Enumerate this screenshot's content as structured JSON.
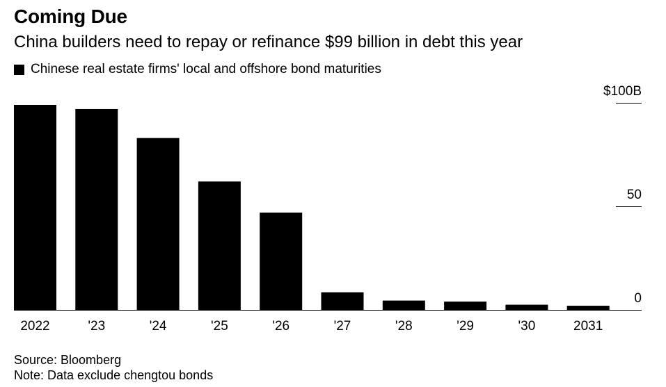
{
  "header": {
    "title": "Coming Due",
    "subtitle": "China builders need to repay or refinance $99 billion in debt this year"
  },
  "legend": {
    "label": "Chinese real estate firms' local and offshore bond maturities",
    "color": "#000000"
  },
  "footer": {
    "source": "Source: Bloomberg",
    "note": "Note: Data exclude chengtou bonds"
  },
  "chart_data": {
    "type": "bar",
    "categories": [
      "2022",
      "'23",
      "'24",
      "'25",
      "'26",
      "'27",
      "'28",
      "'29",
      "'30",
      "2031"
    ],
    "series": [
      {
        "name": "Chinese real estate firms' local and offshore bond maturities",
        "values": [
          99,
          97,
          83,
          62,
          47,
          8.5,
          4.5,
          4,
          2.5,
          2
        ],
        "color": "#000000"
      }
    ],
    "y_ticks": [
      {
        "value": 100,
        "label": "$100B"
      },
      {
        "value": 50,
        "label": "50"
      },
      {
        "value": 0,
        "label": "0"
      }
    ],
    "ylim": [
      0,
      100
    ],
    "grid": false,
    "axis_position": "right"
  }
}
